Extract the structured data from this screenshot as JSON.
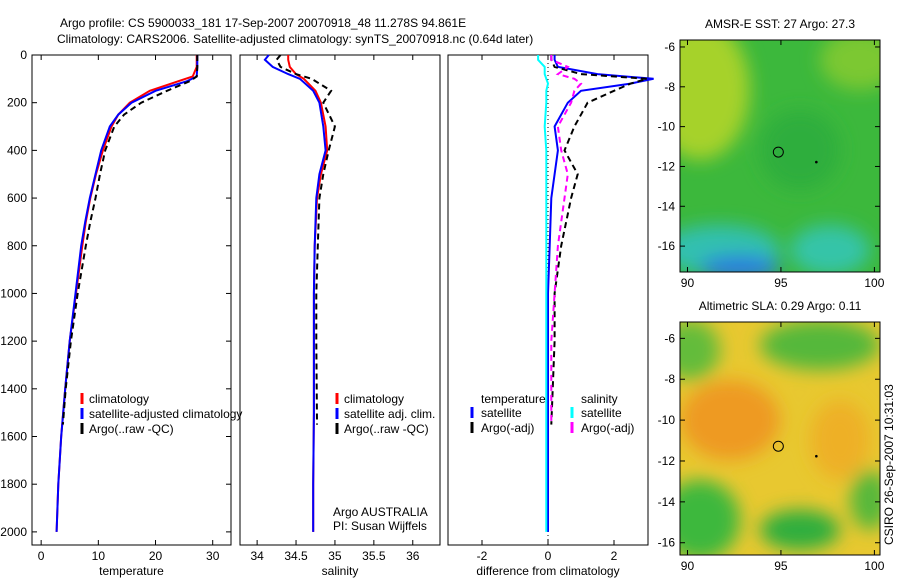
{
  "title_line1": "Argo profile: CS 5900033_181 17-Sep-2007 20070918_48 11.278S 94.861E",
  "title_line2": "Climatology: CARS2006. Satellite-adjusted climatology: synTS_20070918.nc (0.64d later)",
  "side_label": "CSIRO 26-Sep-2007 10:31:03",
  "chart_data": [
    {
      "type": "line",
      "xlabel": "temperature",
      "xlim": [
        -1.6,
        33.2
      ],
      "ylim": [
        0,
        2055
      ],
      "xticks": [
        0,
        10,
        20,
        30
      ],
      "yticks": [
        0,
        200,
        400,
        600,
        800,
        1000,
        1200,
        1400,
        1600,
        1800,
        2000
      ],
      "legend": [
        "climatology",
        "satellite-adjusted climatology",
        "Argo(..raw -QC)"
      ],
      "series": [
        {
          "name": "climatology",
          "color": "#ff0000",
          "dash": false,
          "depth": [
            0,
            50,
            90,
            110,
            150,
            200,
            250,
            300,
            400,
            500,
            600,
            700,
            800,
            1000,
            1200,
            1400,
            1600,
            1800,
            2000
          ],
          "values": [
            27.2,
            27.2,
            26.5,
            24,
            19,
            15.5,
            13.5,
            12.3,
            10.8,
            9.6,
            8.6,
            7.8,
            7.2,
            6.1,
            5.0,
            4.2,
            3.5,
            3.0,
            2.7
          ]
        },
        {
          "name": "satellite-adjusted climatology",
          "color": "#0000ff",
          "dash": false,
          "depth": [
            0,
            50,
            90,
            110,
            150,
            200,
            250,
            300,
            400,
            500,
            600,
            700,
            800,
            1000,
            1200,
            1400,
            1600,
            1800,
            2000
          ],
          "values": [
            27.3,
            27.3,
            27.2,
            25.5,
            20,
            15.8,
            13.5,
            12,
            10.5,
            9.5,
            8.5,
            7.7,
            7.0,
            6.0,
            5.0,
            4.2,
            3.5,
            3.0,
            2.7
          ]
        },
        {
          "name": "Argo(..raw -QC)",
          "color": "#000000",
          "dash": true,
          "depth": [
            0,
            50,
            90,
            110,
            150,
            200,
            250,
            300,
            400,
            500,
            600,
            700,
            800,
            1000,
            1200,
            1400,
            1550
          ],
          "values": [
            27.3,
            27.3,
            27.2,
            26,
            22,
            17.5,
            14.5,
            12.8,
            11.2,
            10.3,
            9.5,
            8.6,
            7.8,
            6.4,
            5.2,
            4.3,
            3.8
          ]
        }
      ]
    },
    {
      "type": "line",
      "xlabel": "salinity",
      "xlim": [
        33.78,
        36.35
      ],
      "ylim": [
        0,
        2055
      ],
      "xticks": [
        34,
        34.5,
        35,
        35.5,
        36
      ],
      "yticks": [],
      "legend": [
        "climatology",
        "satellite adj. clim.",
        "Argo(..raw -QC)"
      ],
      "annotation": [
        "Argo AUSTRALIA",
        "PI: Susan Wijffels"
      ],
      "series": [
        {
          "name": "climatology",
          "color": "#ff0000",
          "dash": false,
          "depth": [
            0,
            20,
            50,
            80,
            100,
            150,
            200,
            300,
            400,
            500,
            600,
            800,
            1000,
            1200,
            1500,
            1800,
            2000
          ],
          "values": [
            34.4,
            34.4,
            34.42,
            34.5,
            34.6,
            34.75,
            34.82,
            34.88,
            34.9,
            34.82,
            34.77,
            34.74,
            34.73,
            34.73,
            34.73,
            34.72,
            34.72
          ]
        },
        {
          "name": "satellite adj. clim.",
          "color": "#0000ff",
          "dash": false,
          "depth": [
            0,
            20,
            50,
            80,
            100,
            150,
            200,
            300,
            400,
            500,
            600,
            800,
            1000,
            1200,
            1500,
            1800,
            2000
          ],
          "values": [
            34.15,
            34.1,
            34.2,
            34.4,
            34.55,
            34.72,
            34.8,
            34.85,
            34.88,
            34.8,
            34.76,
            34.74,
            34.73,
            34.73,
            34.73,
            34.72,
            34.72
          ]
        },
        {
          "name": "Argo(..raw -QC)",
          "color": "#000000",
          "dash": true,
          "depth": [
            0,
            20,
            50,
            80,
            100,
            150,
            200,
            300,
            400,
            500,
            600,
            800,
            1000,
            1200,
            1550
          ],
          "values": [
            34.3,
            34.25,
            34.3,
            34.5,
            34.7,
            34.95,
            34.85,
            35.0,
            34.92,
            34.85,
            34.8,
            34.78,
            34.76,
            34.76,
            34.77
          ]
        }
      ]
    },
    {
      "type": "line",
      "xlabel": "difference from climatology",
      "xlim": [
        -3.03,
        3.03
      ],
      "ylim": [
        0,
        2055
      ],
      "xticks": [
        -2,
        0,
        2
      ],
      "yticks": [],
      "legend_groups": [
        {
          "header": "temperature",
          "items": [
            "satellite",
            "Argo(-adj)"
          ]
        },
        {
          "header": "salinity",
          "items": [
            "satellite",
            "Argo(-adj)"
          ]
        }
      ],
      "series": [
        {
          "name": "temperature satellite",
          "color": "#0000ff",
          "dash": false,
          "depth": [
            0,
            20,
            50,
            80,
            100,
            120,
            150,
            200,
            300,
            400,
            500,
            600,
            800,
            1000,
            1200,
            1500,
            1800,
            2000
          ],
          "values": [
            0.2,
            0.2,
            0.3,
            1.5,
            3.2,
            2.5,
            1,
            0.6,
            0.2,
            0.3,
            0.2,
            0.1,
            0.05,
            0,
            0,
            0,
            0,
            0
          ]
        },
        {
          "name": "temperature Argo(-adj)",
          "color": "#000000",
          "dash": true,
          "depth": [
            0,
            20,
            50,
            80,
            100,
            120,
            150,
            200,
            300,
            400,
            500,
            600,
            800,
            1000,
            1200,
            1550
          ],
          "values": [
            0.1,
            0.1,
            0.2,
            1,
            3,
            2.5,
            2,
            1.2,
            0.8,
            0.5,
            0.9,
            0.7,
            0.4,
            0.2,
            0.2,
            0.1
          ]
        },
        {
          "name": "salinity satellite",
          "color": "#00ffff",
          "dash": false,
          "depth": [
            0,
            20,
            50,
            80,
            100,
            120,
            150,
            200,
            300,
            400,
            500,
            600,
            800,
            1000,
            1200,
            1500,
            1800,
            2000
          ],
          "values": [
            -0.3,
            -0.3,
            -0.1,
            -0.1,
            -0.05,
            0,
            -0.05,
            -0.05,
            -0.1,
            -0.05,
            -0.05,
            -0.05,
            -0.05,
            -0.05,
            -0.05,
            -0.05,
            -0.05,
            -0.05
          ]
        },
        {
          "name": "salinity Argo(-adj)",
          "color": "#ff00ff",
          "dash": true,
          "depth": [
            0,
            20,
            50,
            80,
            100,
            120,
            150,
            200,
            300,
            400,
            500,
            600,
            800,
            1000,
            1200,
            1550
          ],
          "values": [
            0.1,
            0.1,
            0.6,
            0.3,
            0.8,
            1,
            0.8,
            0.7,
            0.3,
            0.4,
            0.6,
            0.5,
            0.3,
            0.2,
            0.1,
            0.1
          ]
        }
      ]
    },
    {
      "type": "heatmap",
      "title": "AMSR-E SST: 27 Argo: 27.3",
      "xlim": [
        89.6,
        100.3
      ],
      "ylim": [
        -17.3,
        -5.65
      ],
      "xticks": [
        90,
        95,
        100
      ],
      "yticks": [
        -6,
        -8,
        -10,
        -12,
        -14,
        -16
      ],
      "marker": [
        94.861,
        -11.278
      ]
    },
    {
      "type": "heatmap",
      "title": "Altimetric SLA: 0.29 Argo: 0.11",
      "xlim": [
        89.6,
        100.3
      ],
      "ylim": [
        -16.6,
        -5.2
      ],
      "xticks": [
        90,
        95,
        100
      ],
      "yticks": [
        -6,
        -8,
        -10,
        -12,
        -14,
        -16
      ],
      "marker": [
        94.861,
        -11.278
      ]
    }
  ]
}
